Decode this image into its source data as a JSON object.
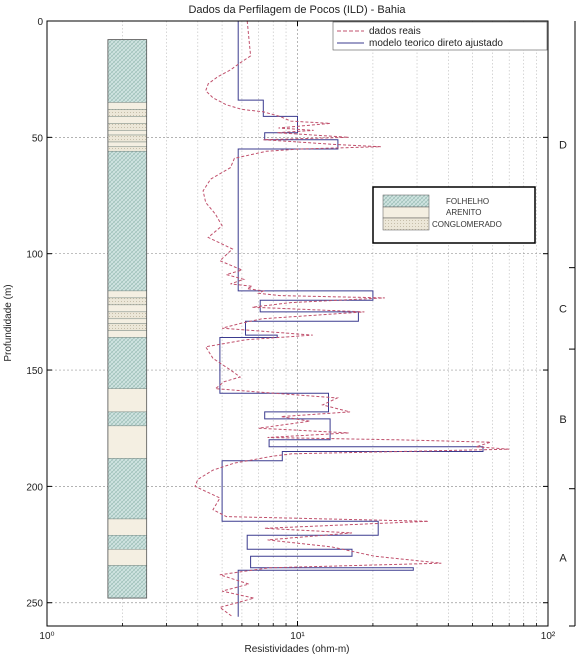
{
  "chart_data": {
    "type": "line",
    "title": "Dados da Perfilagem de Pocos (ILD) - Bahia",
    "xlabel": "Resistividades (ohm-m)",
    "ylabel": "Profundidade (m)",
    "x_scale": "log",
    "xlim": [
      1,
      100
    ],
    "ylim": [
      0,
      260
    ],
    "y_inverted": true,
    "grid": true,
    "x_ticks": [
      1,
      10,
      100
    ],
    "x_tick_labels": [
      "10⁰",
      "10¹",
      "10²"
    ],
    "y_ticks": [
      0,
      50,
      100,
      150,
      200,
      250
    ],
    "y_tick_labels": [
      "0",
      "50",
      "100",
      "150",
      "200",
      "250"
    ],
    "legend": {
      "placement": "top-right",
      "entries": [
        "dados reais",
        "modelo teorico direto ajustado"
      ]
    },
    "lithology_legend": {
      "placement": "right",
      "entries": [
        "FOLHELHO",
        "ARENITO",
        "CONGLOMERADO"
      ]
    },
    "series": [
      {
        "name": "modelo teorico direto ajustado",
        "style": "solid",
        "color": "#3b3b8f",
        "x": [
          5.8,
          5.8,
          7.3,
          7.3,
          10,
          10,
          7.4,
          7.4,
          14.5,
          14.5,
          5.8,
          5.8,
          20,
          20,
          7.1,
          7.1,
          17.5,
          17.5,
          6.2,
          6.2,
          8.3,
          8.3,
          4.9,
          4.9,
          13.3,
          13.3,
          7.4,
          7.4,
          13.5,
          13.5,
          7.7,
          7.7,
          55,
          55,
          8.7,
          8.7,
          5.0,
          5.0,
          21,
          21,
          6.3,
          6.3,
          16.5,
          16.5,
          6.5,
          6.5,
          29,
          29,
          5.8,
          5.8
        ],
        "y": [
          0,
          34,
          34,
          41,
          41,
          48,
          48,
          51,
          51,
          55,
          55,
          116,
          116,
          120,
          120,
          125,
          125,
          129,
          129,
          135,
          135,
          136,
          136,
          160,
          160,
          168,
          168,
          171,
          171,
          180,
          180,
          183,
          183,
          185,
          185,
          189,
          189,
          215,
          215,
          221,
          221,
          227,
          227,
          230,
          230,
          235,
          235,
          236,
          236,
          256
        ]
      },
      {
        "name": "dados reais",
        "style": "dashed",
        "color": "#c0506c",
        "x": [
          6.3,
          6.5,
          5.9,
          5.4,
          4.8,
          4.4,
          4.3,
          4.6,
          5.2,
          6.0,
          7.3,
          8.5,
          9.4,
          13.5,
          8.4,
          11.6,
          8.3,
          16.0,
          7.3,
          13.8,
          21.5,
          10.2,
          7.5,
          5.6,
          5.4,
          4.5,
          4.2,
          4.3,
          4.7,
          5.0,
          4.4,
          5.5,
          4.9,
          6.0,
          5.2,
          6.1,
          5.4,
          6.6,
          6.3,
          7.3,
          7.0,
          8.5,
          22.3,
          9.4,
          6.6,
          18.5,
          7.2,
          5.9,
          5.0,
          11.5,
          6.2,
          4.3,
          4.6,
          5.4,
          5.9,
          5.1,
          4.7,
          14.4,
          12.6,
          16.2,
          8.6,
          11.2,
          7.0,
          16.0,
          7.6,
          25.1,
          59,
          51.6,
          70,
          9.5,
          8.0,
          5.6,
          4.6,
          4.0,
          3.9,
          4.9,
          4.6,
          5.2,
          33.3,
          7.4,
          16.5,
          7.6,
          13.7,
          20.3,
          37.5,
          7.7,
          4.9,
          6.4,
          5.0,
          6.7,
          4.9,
          5.5
        ],
        "y": [
          0,
          15,
          18,
          21,
          24,
          27,
          30,
          33,
          36,
          38,
          39,
          41,
          43,
          44,
          46,
          47,
          48,
          50,
          51,
          53,
          54,
          55,
          56,
          59,
          63,
          68,
          73,
          78,
          83,
          88,
          93,
          98,
          103,
          107,
          109,
          111,
          113,
          114,
          115,
          116,
          117,
          118,
          119,
          121,
          123,
          125,
          128,
          130,
          132,
          135,
          137,
          140,
          145,
          150,
          153,
          155,
          158,
          162,
          165,
          168,
          170,
          172,
          175,
          177,
          179,
          180,
          181,
          183,
          184,
          186,
          187,
          190,
          193,
          197,
          200,
          205,
          210,
          213,
          215,
          218,
          220,
          223,
          226,
          230,
          233,
          235,
          238,
          242,
          245,
          248,
          252,
          256
        ]
      }
    ],
    "lithology_column": {
      "x": [
        1.75,
        2.5
      ],
      "layers": [
        {
          "top": 8,
          "bottom": 35,
          "type": "FOLHELHO"
        },
        {
          "top": 35,
          "bottom": 38,
          "type": "ARENITO"
        },
        {
          "top": 38,
          "bottom": 41,
          "type": "CONGLOMERADO"
        },
        {
          "top": 41,
          "bottom": 44,
          "type": "ARENITO"
        },
        {
          "top": 44,
          "bottom": 47,
          "type": "CONGLOMERADO"
        },
        {
          "top": 47,
          "bottom": 49,
          "type": "ARENITO"
        },
        {
          "top": 49,
          "bottom": 52,
          "type": "CONGLOMERADO"
        },
        {
          "top": 52,
          "bottom": 54,
          "type": "ARENITO"
        },
        {
          "top": 54,
          "bottom": 56,
          "type": "CONGLOMERADO"
        },
        {
          "top": 56,
          "bottom": 116,
          "type": "FOLHELHO"
        },
        {
          "top": 116,
          "bottom": 119,
          "type": "ARENITO"
        },
        {
          "top": 119,
          "bottom": 122,
          "type": "CONGLOMERADO"
        },
        {
          "top": 122,
          "bottom": 125,
          "type": "ARENITO"
        },
        {
          "top": 125,
          "bottom": 128,
          "type": "CONGLOMERADO"
        },
        {
          "top": 128,
          "bottom": 130,
          "type": "ARENITO"
        },
        {
          "top": 130,
          "bottom": 133,
          "type": "CONGLOMERADO"
        },
        {
          "top": 133,
          "bottom": 136,
          "type": "ARENITO"
        },
        {
          "top": 136,
          "bottom": 158,
          "type": "FOLHELHO"
        },
        {
          "top": 158,
          "bottom": 168,
          "type": "ARENITO"
        },
        {
          "top": 168,
          "bottom": 174,
          "type": "FOLHELHO"
        },
        {
          "top": 174,
          "bottom": 188,
          "type": "ARENITO"
        },
        {
          "top": 188,
          "bottom": 214,
          "type": "FOLHELHO"
        },
        {
          "top": 214,
          "bottom": 221,
          "type": "ARENITO"
        },
        {
          "top": 221,
          "bottom": 227,
          "type": "FOLHELHO"
        },
        {
          "top": 227,
          "bottom": 234,
          "type": "ARENITO"
        },
        {
          "top": 234,
          "bottom": 248,
          "type": "FOLHELHO"
        }
      ]
    },
    "zones": [
      {
        "label": "D",
        "top": 0,
        "bottom": 106
      },
      {
        "label": "C",
        "top": 106,
        "bottom": 141
      },
      {
        "label": "B",
        "top": 141,
        "bottom": 201
      },
      {
        "label": "A",
        "top": 201,
        "bottom": 260
      }
    ],
    "colors": {
      "FOLHELHO": "#cfe3e0",
      "ARENITO": "#f4efe2",
      "CONGLOMERADO": "#ece7d8",
      "model": "#3b3b8f",
      "data": "#c0506c"
    }
  }
}
